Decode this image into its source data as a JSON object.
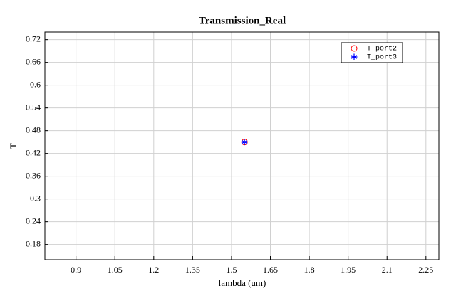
{
  "chart_data": {
    "type": "scatter",
    "title": "Transmission_Real",
    "xlabel": "lambda (um)",
    "ylabel": "T",
    "series": [
      {
        "name": "T_port2",
        "color": "#ff0000",
        "marker": "circle",
        "x": [
          1.55
        ],
        "values": [
          0.45
        ]
      },
      {
        "name": "T_port3",
        "color": "#0000ff",
        "marker": "star",
        "x": [
          1.55
        ],
        "values": [
          0.45
        ]
      }
    ],
    "xlim": [
      0.78,
      2.3
    ],
    "xticks": [
      0.9,
      1.05,
      1.2,
      1.35,
      1.5,
      1.65,
      1.8,
      1.95,
      2.1,
      2.25
    ],
    "ylim": [
      0.14,
      0.74
    ],
    "yticks": [
      0.18,
      0.24,
      0.3,
      0.36,
      0.42,
      0.48,
      0.54,
      0.6,
      0.66,
      0.72
    ],
    "grid": true,
    "legend": "upper right"
  }
}
